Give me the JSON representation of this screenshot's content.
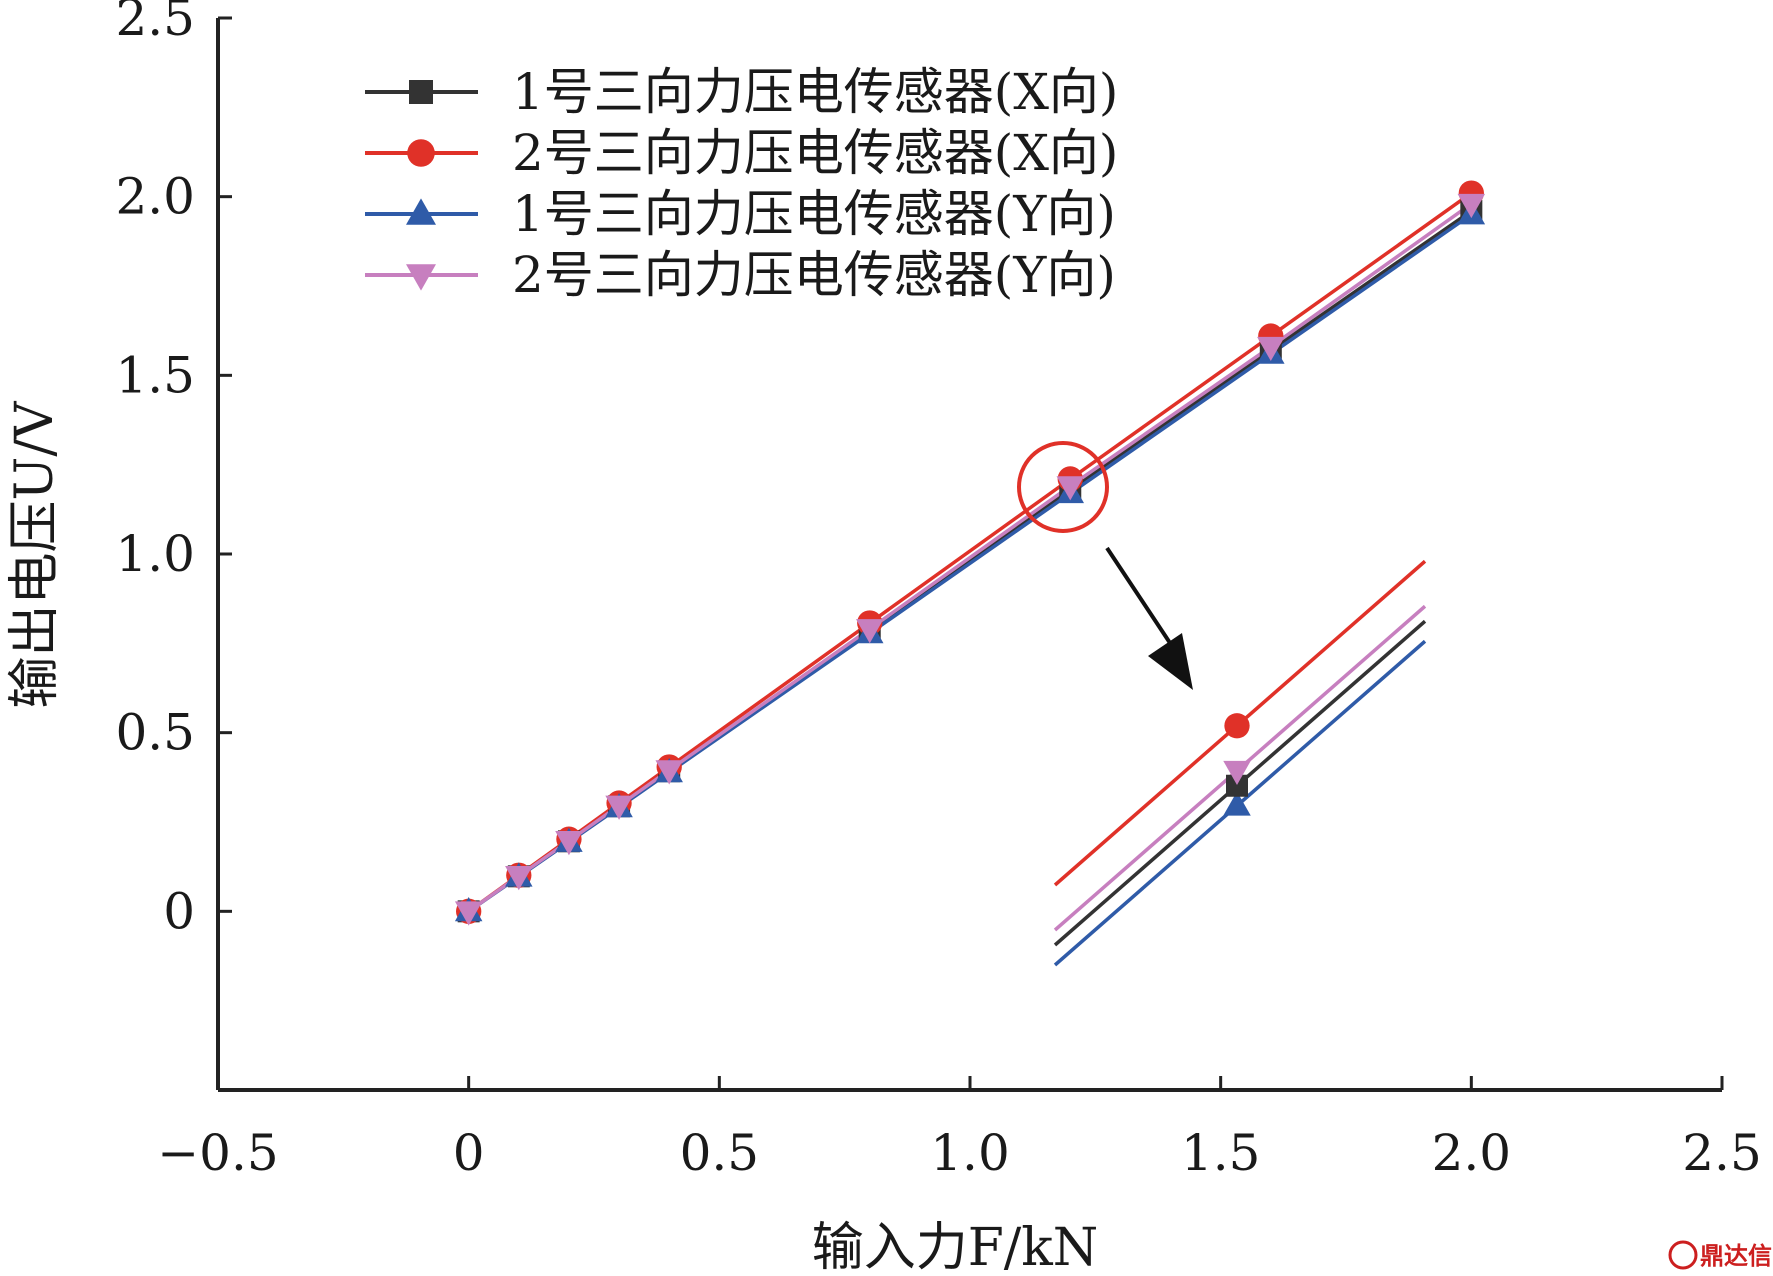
{
  "chart_data": {
    "type": "line",
    "xlabel": "输入力F/kN",
    "ylabel": "输出电压U/V",
    "xlim": [
      -0.5,
      2.5
    ],
    "ylim": [
      -0.5,
      2.5
    ],
    "x_ticks": [
      "−0.5",
      "0",
      "0.5",
      "1.0",
      "1.5",
      "2.0",
      "2.5"
    ],
    "y_ticks": [
      "0",
      "0.5",
      "1.0",
      "1.5",
      "2.0",
      "2.5"
    ],
    "grid": false,
    "legend_position": "top-left",
    "x": [
      0,
      0.1,
      0.2,
      0.3,
      0.4,
      0.8,
      1.2,
      1.6,
      2.0
    ],
    "series": [
      {
        "name": "1号三向力压电传感器(X向)",
        "marker": "square",
        "color": "#333333",
        "values": [
          0,
          0.098,
          0.196,
          0.294,
          0.392,
          0.785,
          1.18,
          1.57,
          1.96
        ]
      },
      {
        "name": "2号三向力压电传感器(X向)",
        "marker": "circle",
        "color": "#e03128",
        "values": [
          0,
          0.101,
          0.202,
          0.303,
          0.404,
          0.807,
          1.21,
          1.61,
          2.01
        ]
      },
      {
        "name": "1号三向力压电传感器(Y向)",
        "marker": "triangle-up",
        "color": "#2f5ba8",
        "values": [
          0,
          0.097,
          0.194,
          0.291,
          0.389,
          0.778,
          1.17,
          1.56,
          1.95
        ]
      },
      {
        "name": "2号三向力压电传感器(Y向)",
        "marker": "triangle-down",
        "color": "#c77fbf",
        "values": [
          0,
          0.099,
          0.197,
          0.296,
          0.395,
          0.79,
          1.19,
          1.58,
          1.98
        ]
      }
    ],
    "inset": {
      "zoom_region": "around F = 1.2 kN",
      "series_order_top_to_bottom": [
        "2号三向力压电传感器(X向)",
        "2号三向力压电传感器(Y向)",
        "1号三向力压电传感器(X向)",
        "1号三向力压电传感器(Y向)"
      ]
    }
  },
  "watermark": {
    "text": "鼎达信",
    "color": "#cc1f1f"
  }
}
